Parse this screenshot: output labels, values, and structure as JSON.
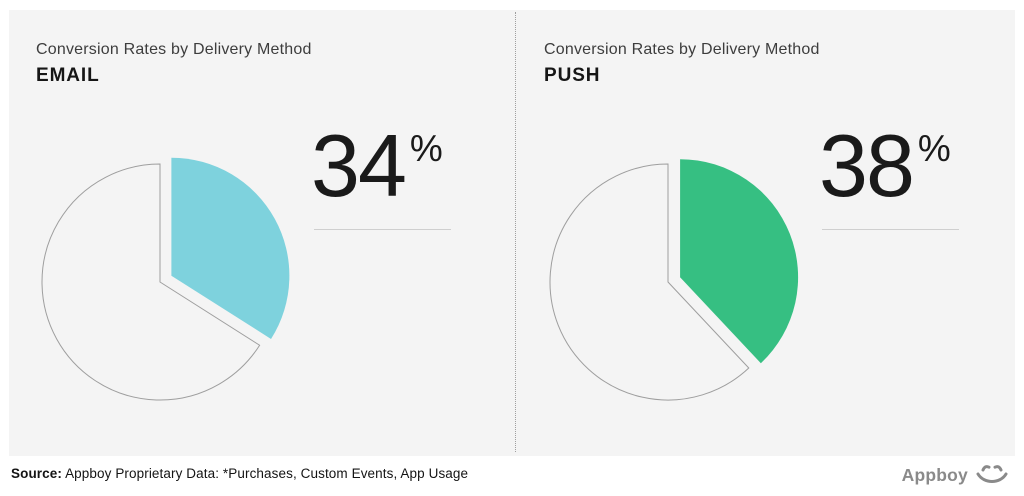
{
  "board": {
    "background": "#f4f4f4"
  },
  "chart_data": [
    {
      "type": "pie",
      "title": "Conversion Rates by Delivery Method",
      "subtitle": "EMAIL",
      "value_label": "34",
      "unit": "%",
      "start_angle_deg": 0,
      "slices": [
        {
          "label": "Converted",
          "value": 34,
          "color": "#7ed2dd",
          "exploded": true
        },
        {
          "label": "Remainder",
          "value": 66,
          "color": "none",
          "exploded": false
        }
      ]
    },
    {
      "type": "pie",
      "title": "Conversion Rates by Delivery Method",
      "subtitle": "PUSH",
      "value_label": "38",
      "unit": "%",
      "start_angle_deg": 0,
      "slices": [
        {
          "label": "Converted",
          "value": 38,
          "color": "#36bf82",
          "exploded": true
        },
        {
          "label": "Remainder",
          "value": 62,
          "color": "none",
          "exploded": false
        }
      ]
    }
  ],
  "footer": {
    "source_label": "Source:",
    "source_text": "Appboy Proprietary Data: *Purchases, Custom Events, App Usage",
    "brand_name": "Appboy"
  },
  "colors": {
    "email_slice": "#7ed2dd",
    "push_slice": "#36bf82",
    "panel_background": "#f4f4f4",
    "circle_outline": "#9e9e9e",
    "stat_rule": "#cfcfcf",
    "brand_gray": "#8a8a8a"
  }
}
